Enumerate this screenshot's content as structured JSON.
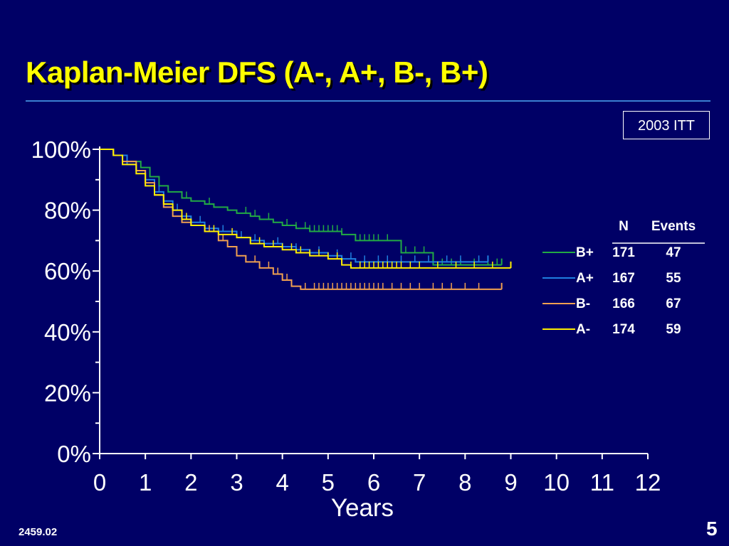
{
  "slide": {
    "title": "Kaplan-Meier DFS (A-, A+, B-, B+)",
    "badge": "2003 ITT",
    "code": "2459.02",
    "page_number": "5"
  },
  "chart_data": {
    "type": "line",
    "title": "Kaplan-Meier DFS (A-, A+, B-, B+)",
    "xlabel": "Years",
    "ylabel": "",
    "xlim": [
      0,
      12
    ],
    "ylim": [
      0,
      100
    ],
    "x_ticks": [
      "0",
      "1",
      "2",
      "3",
      "4",
      "5",
      "6",
      "7",
      "8",
      "9",
      "10",
      "11",
      "12"
    ],
    "y_ticks": [
      "0%",
      "20%",
      "40%",
      "60%",
      "80%",
      "100%"
    ],
    "grid": false,
    "legend": {
      "placement": "right",
      "header": [
        "N",
        "Events"
      ],
      "rows": [
        {
          "label": "B+",
          "n": "171",
          "events": "47",
          "color": "#22aa44"
        },
        {
          "label": "A+",
          "n": "167",
          "events": "55",
          "color": "#1f7fe0"
        },
        {
          "label": "B-",
          "n": "166",
          "events": "67",
          "color": "#f0a050"
        },
        {
          "label": "A-",
          "n": "174",
          "events": "59",
          "color": "#ffee00"
        }
      ]
    },
    "series": [
      {
        "name": "B+",
        "color": "#22aa44",
        "x": [
          0,
          0.3,
          0.6,
          0.9,
          1.1,
          1.3,
          1.5,
          1.8,
          2.0,
          2.3,
          2.5,
          2.8,
          3.0,
          3.3,
          3.5,
          3.8,
          4.0,
          4.3,
          4.6,
          5.0,
          5.3,
          5.6,
          6.0,
          6.3,
          6.6,
          7.0,
          7.3,
          7.6,
          8.0,
          8.5,
          8.8
        ],
        "y": [
          100,
          98,
          96,
          94,
          91,
          88,
          86,
          84,
          83,
          82,
          81,
          80,
          79,
          78,
          77,
          76,
          75,
          74,
          73,
          73,
          72,
          70,
          70,
          70,
          66,
          66,
          62,
          62,
          62,
          62,
          62
        ],
        "censor": [
          1.5,
          1.9,
          2.4,
          3.2,
          3.4,
          3.7,
          4.1,
          4.3,
          4.5,
          4.6,
          4.7,
          4.8,
          4.9,
          5.0,
          5.1,
          5.2,
          5.3,
          5.6,
          5.7,
          5.8,
          5.9,
          6.0,
          6.1,
          6.3,
          6.7,
          6.9,
          7.1,
          7.5,
          7.7,
          7.9,
          8.2,
          8.5,
          8.7
        ],
        "end_x": 8.8
      },
      {
        "name": "A+",
        "color": "#1f7fe0",
        "x": [
          0,
          0.3,
          0.6,
          0.8,
          1.0,
          1.2,
          1.4,
          1.6,
          1.8,
          2.0,
          2.3,
          2.6,
          3.0,
          3.3,
          3.6,
          4.0,
          4.3,
          4.6,
          5.0,
          5.3,
          5.6,
          6.0,
          6.5,
          7.0,
          7.5,
          8.0,
          8.5
        ],
        "y": [
          100,
          98,
          95,
          93,
          90,
          86,
          83,
          80,
          78,
          76,
          74,
          73,
          71,
          70,
          69,
          68,
          67,
          66,
          65,
          64,
          63,
          63,
          63,
          63,
          63,
          63,
          63
        ],
        "censor": [
          1.3,
          1.7,
          2.2,
          2.7,
          3.1,
          3.4,
          3.9,
          4.3,
          4.8,
          5.2,
          5.5,
          5.8,
          6.1,
          6.3,
          6.6,
          6.9,
          7.2,
          7.6,
          7.9,
          8.3
        ],
        "end_x": 8.5
      },
      {
        "name": "B-",
        "color": "#f0a050",
        "x": [
          0,
          0.3,
          0.5,
          0.8,
          1.0,
          1.2,
          1.4,
          1.6,
          1.8,
          2.0,
          2.3,
          2.6,
          2.8,
          3.0,
          3.2,
          3.5,
          3.8,
          4.0,
          4.2,
          4.4,
          4.6,
          5.0,
          6.0,
          7.0,
          8.0,
          8.8
        ],
        "y": [
          100,
          98,
          96,
          93,
          89,
          85,
          81,
          78,
          76,
          75,
          73,
          70,
          68,
          65,
          63,
          61,
          59,
          57,
          55,
          54,
          54,
          54,
          54,
          54,
          54,
          54
        ],
        "censor": [
          2.4,
          2.7,
          3.0,
          3.4,
          3.7,
          3.9,
          4.1,
          4.5,
          4.7,
          4.8,
          4.9,
          5.0,
          5.1,
          5.2,
          5.3,
          5.4,
          5.5,
          5.6,
          5.7,
          5.8,
          5.9,
          6.0,
          6.1,
          6.2,
          6.4,
          6.6,
          6.8,
          7.0,
          7.3,
          7.5,
          7.7,
          8.0,
          8.3
        ],
        "end_x": 8.8
      },
      {
        "name": "A-",
        "color": "#ffee00",
        "x": [
          0,
          0.3,
          0.5,
          0.8,
          1.0,
          1.2,
          1.4,
          1.6,
          1.8,
          2.0,
          2.3,
          2.6,
          3.0,
          3.3,
          3.6,
          4.0,
          4.3,
          4.6,
          5.0,
          5.3,
          5.5,
          6.0,
          7.0,
          8.0,
          9.0
        ],
        "y": [
          100,
          98,
          95,
          92,
          88,
          85,
          82,
          80,
          77,
          75,
          73,
          72,
          71,
          69,
          68,
          67,
          66,
          65,
          64,
          62,
          61,
          61,
          61,
          61,
          61
        ],
        "censor": [
          1.9,
          2.5,
          2.9,
          3.3,
          3.5,
          3.8,
          4.0,
          4.2,
          4.4,
          4.6,
          4.8,
          5.0,
          5.2,
          5.5,
          5.7,
          5.8,
          5.9,
          6.0,
          6.1,
          6.2,
          6.3,
          6.4,
          6.5,
          6.6,
          6.8,
          7.0,
          7.4,
          7.8,
          8.2,
          8.6,
          9.0
        ],
        "end_x": 9.0
      }
    ]
  }
}
